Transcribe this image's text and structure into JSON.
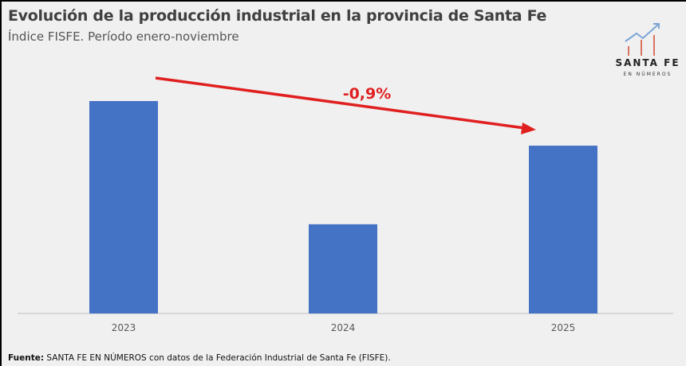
{
  "header": {
    "title": "Evolución de la producción industrial en la provincia de Santa Fe",
    "subtitle": "Índice FISFE.  Período enero-noviembre"
  },
  "logo": {
    "name": "SANTA FE",
    "tagline": "EN NÚMEROS"
  },
  "chart_data": {
    "type": "bar",
    "categories": [
      "2023",
      "2024",
      "2025"
    ],
    "values_relative_to_2023": [
      1.0,
      0.42,
      0.79
    ],
    "y_axis_shown": false,
    "grid": false,
    "bar_color": "#4472c4",
    "annotation": {
      "text": "-0,9%",
      "color": "#e02020",
      "arrow_from": "2023",
      "arrow_to": "2025"
    }
  },
  "footer": {
    "label": "Fuente:",
    "text": " SANTA FE EN NÚMEROS con datos de la Federación Industrial de Santa Fe (FISFE)."
  }
}
